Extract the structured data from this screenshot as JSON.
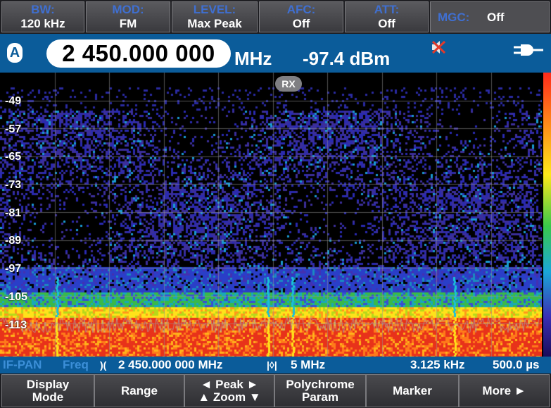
{
  "top_params": [
    {
      "label": "BW:",
      "value": "120 kHz"
    },
    {
      "label": "MOD:",
      "value": "FM"
    },
    {
      "label": "LEVEL:",
      "value": "Max Peak"
    },
    {
      "label": "AFC:",
      "value": "Off"
    },
    {
      "label": "ATT:",
      "value": "Off"
    }
  ],
  "mgc": {
    "label": "MGC:",
    "value": "Off"
  },
  "frequency": {
    "antenna": "A",
    "value": "2 450.000 000",
    "unit": "MHz",
    "level": "-97.4 dBm"
  },
  "icons": {
    "speaker": "speaker-muted-icon",
    "power": "plug-icon",
    "center": "center-frequency-icon",
    "span": "span-icon"
  },
  "waterfall": {
    "rx_badge": "RX",
    "scale_labels": [
      "-49",
      "-57",
      "-65",
      "-73",
      "-81",
      "-89",
      "-97",
      "-105",
      "-113"
    ]
  },
  "info_bar": {
    "mode": "IF-PAN",
    "kind": "Freq",
    "center_icon": ")(",
    "center_freq": "2 450.000 000 MHz",
    "span_icon": "|◊|",
    "span": "5 MHz",
    "resolution": "3.125 kHz",
    "time": "500.0 µs"
  },
  "softkeys": [
    {
      "line1": "Display",
      "line2": "Mode"
    },
    {
      "line1": "Range",
      "line2": ""
    },
    {
      "line1": "◄ Peak ►",
      "line2": "▲ Zoom ▼"
    },
    {
      "line1": "Polychrome",
      "line2": "Param"
    },
    {
      "line1": "Marker",
      "line2": ""
    },
    {
      "line1": "More ►",
      "line2": ""
    }
  ],
  "colors": {
    "accent_blue": "#0b5c9a",
    "label_blue": "#3f6fd1"
  }
}
